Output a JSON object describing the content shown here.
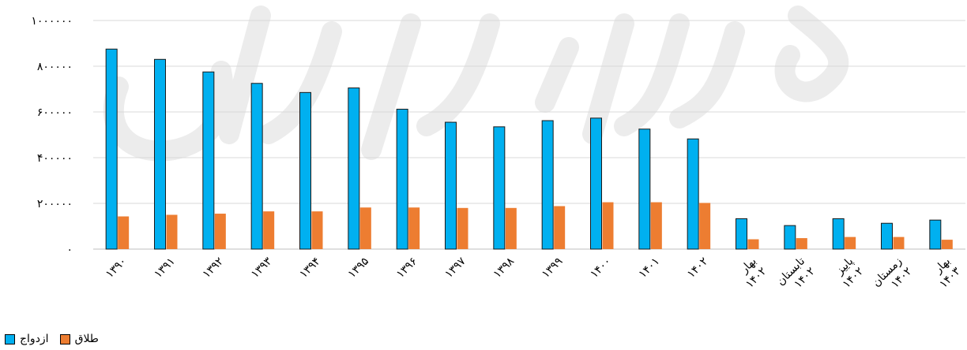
{
  "chart_data": {
    "type": "bar",
    "categories": [
      "۱۳۹۰",
      "۱۳۹۱",
      "۱۳۹۲",
      "۱۳۹۳",
      "۱۳۹۴",
      "۱۳۹۵",
      "۱۳۹۶",
      "۱۳۹۷",
      "۱۳۹۸",
      "۱۳۹۹",
      "۱۴۰۰",
      "۱۴۰۱",
      "۱۴۰۲",
      "بهار ۱۴۰۲",
      "تابستان ۱۴۰۲",
      "پاییز ۱۴۰۲",
      "زمستان ۱۴۰۲",
      "بهار ۱۴۰۳"
    ],
    "series": [
      {
        "name": "ازدواج",
        "color": "#00b0f0",
        "values": [
          875000,
          830000,
          775000,
          725000,
          685000,
          705000,
          612000,
          555000,
          535000,
          562000,
          573000,
          525000,
          482000,
          133000,
          103000,
          133000,
          113000,
          127000
        ]
      },
      {
        "name": "طلاق",
        "color": "#ed7d31",
        "values": [
          143000,
          150000,
          155000,
          165000,
          165000,
          182000,
          182000,
          180000,
          180000,
          188000,
          205000,
          205000,
          202000,
          43000,
          48000,
          53000,
          53000,
          41000
        ]
      }
    ],
    "y_ticks": [
      "۰",
      "۲۰۰۰۰۰",
      "۴۰۰۰۰۰",
      "۶۰۰۰۰۰",
      "۸۰۰۰۰۰",
      "۱۰۰۰۰۰۰"
    ],
    "ylim": [
      0,
      1000000
    ],
    "grid": true,
    "legend_position": "bottom-left"
  }
}
